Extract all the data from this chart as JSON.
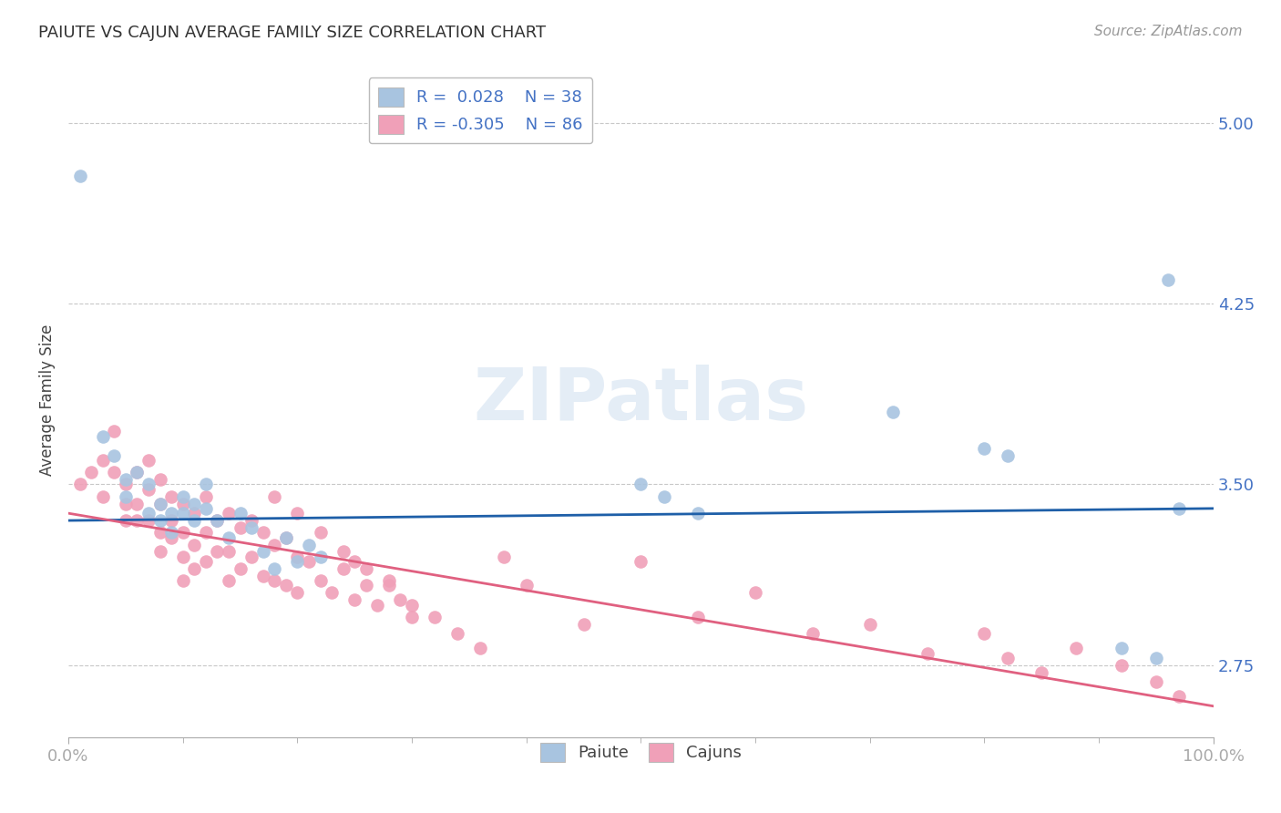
{
  "title": "PAIUTE VS CAJUN AVERAGE FAMILY SIZE CORRELATION CHART",
  "source": "Source: ZipAtlas.com",
  "ylabel": "Average Family Size",
  "xlim": [
    0.0,
    1.0
  ],
  "ylim": [
    2.45,
    5.25
  ],
  "yticks": [
    2.75,
    3.5,
    4.25,
    5.0
  ],
  "xticks": [
    0.0,
    1.0
  ],
  "xticklabels": [
    "0.0%",
    "100.0%"
  ],
  "background_color": "#ffffff",
  "grid_color": "#c8c8c8",
  "paiute_color": "#a8c4e0",
  "cajun_color": "#f0a0b8",
  "paiute_line_color": "#1e5fa8",
  "cajun_line_color": "#e06080",
  "watermark": "ZIPatlas",
  "legend_r_paiute": "R =  0.028",
  "legend_n_paiute": "N = 38",
  "legend_r_cajun": "R = -0.305",
  "legend_n_cajun": "N = 86",
  "paiute_x": [
    0.01,
    0.03,
    0.04,
    0.05,
    0.05,
    0.06,
    0.07,
    0.07,
    0.08,
    0.08,
    0.09,
    0.09,
    0.1,
    0.1,
    0.11,
    0.11,
    0.12,
    0.12,
    0.13,
    0.14,
    0.15,
    0.16,
    0.17,
    0.18,
    0.19,
    0.2,
    0.21,
    0.22,
    0.5,
    0.52,
    0.55,
    0.72,
    0.8,
    0.82,
    0.92,
    0.95,
    0.96,
    0.97
  ],
  "paiute_y": [
    4.78,
    3.7,
    3.62,
    3.52,
    3.45,
    3.55,
    3.5,
    3.38,
    3.42,
    3.35,
    3.38,
    3.3,
    3.45,
    3.38,
    3.42,
    3.35,
    3.5,
    3.4,
    3.35,
    3.28,
    3.38,
    3.32,
    3.22,
    3.15,
    3.28,
    3.18,
    3.25,
    3.2,
    3.5,
    3.45,
    3.38,
    3.8,
    3.65,
    3.62,
    2.82,
    2.78,
    4.35,
    3.4
  ],
  "cajun_x": [
    0.01,
    0.02,
    0.03,
    0.03,
    0.04,
    0.04,
    0.05,
    0.05,
    0.05,
    0.06,
    0.06,
    0.06,
    0.07,
    0.07,
    0.07,
    0.08,
    0.08,
    0.08,
    0.08,
    0.09,
    0.09,
    0.09,
    0.1,
    0.1,
    0.1,
    0.1,
    0.11,
    0.11,
    0.11,
    0.12,
    0.12,
    0.12,
    0.13,
    0.13,
    0.14,
    0.14,
    0.14,
    0.15,
    0.15,
    0.16,
    0.16,
    0.17,
    0.17,
    0.18,
    0.18,
    0.19,
    0.19,
    0.2,
    0.2,
    0.21,
    0.22,
    0.23,
    0.24,
    0.25,
    0.25,
    0.26,
    0.27,
    0.28,
    0.29,
    0.3,
    0.18,
    0.2,
    0.22,
    0.24,
    0.26,
    0.28,
    0.3,
    0.32,
    0.34,
    0.36,
    0.38,
    0.4,
    0.45,
    0.5,
    0.55,
    0.6,
    0.65,
    0.7,
    0.75,
    0.8,
    0.82,
    0.85,
    0.88,
    0.92,
    0.95,
    0.97
  ],
  "cajun_y": [
    3.5,
    3.55,
    3.6,
    3.45,
    3.72,
    3.55,
    3.5,
    3.42,
    3.35,
    3.55,
    3.42,
    3.35,
    3.6,
    3.48,
    3.35,
    3.52,
    3.42,
    3.3,
    3.22,
    3.45,
    3.35,
    3.28,
    3.42,
    3.3,
    3.2,
    3.1,
    3.38,
    3.25,
    3.15,
    3.45,
    3.3,
    3.18,
    3.35,
    3.22,
    3.38,
    3.22,
    3.1,
    3.32,
    3.15,
    3.35,
    3.2,
    3.3,
    3.12,
    3.25,
    3.1,
    3.28,
    3.08,
    3.2,
    3.05,
    3.18,
    3.1,
    3.05,
    3.15,
    3.18,
    3.02,
    3.08,
    3.0,
    3.1,
    3.02,
    2.95,
    3.45,
    3.38,
    3.3,
    3.22,
    3.15,
    3.08,
    3.0,
    2.95,
    2.88,
    2.82,
    3.2,
    3.08,
    2.92,
    3.18,
    2.95,
    3.05,
    2.88,
    2.92,
    2.8,
    2.88,
    2.78,
    2.72,
    2.82,
    2.75,
    2.68,
    2.62
  ]
}
